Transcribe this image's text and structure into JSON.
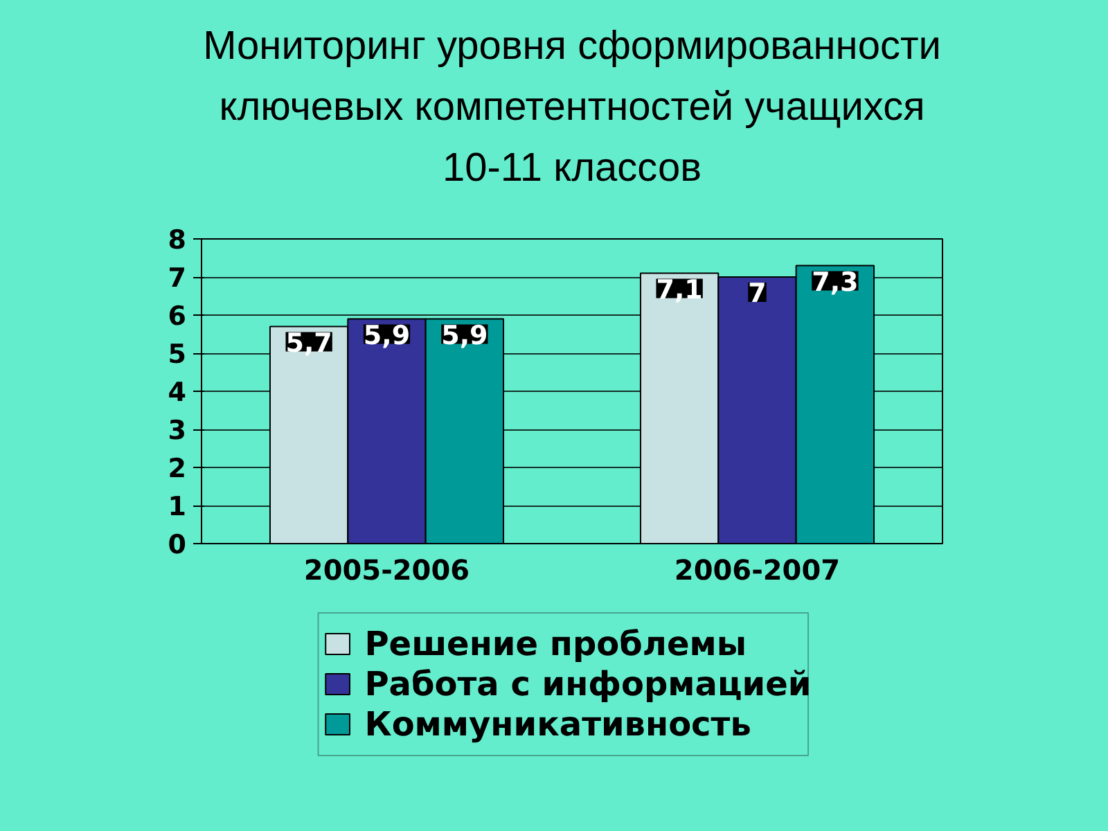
{
  "chart_data": {
    "type": "bar",
    "title": "Мониторинг уровня сформированности ключевых компетентностей учащихся 10-11 классов",
    "categories": [
      "2005-2006",
      "2006-2007"
    ],
    "series": [
      {
        "name": "Решение проблемы",
        "color": "#c8e2e4",
        "values": [
          5.7,
          7.1
        ],
        "value_labels": [
          "5,7",
          "7,1"
        ]
      },
      {
        "name": "Работа с информацией",
        "color": "#333399",
        "values": [
          5.9,
          7
        ],
        "value_labels": [
          "5,9",
          "7"
        ]
      },
      {
        "name": "Коммуникативность",
        "color": "#009a98",
        "values": [
          5.9,
          7.3
        ],
        "value_labels": [
          "5,9",
          "7,3"
        ]
      }
    ],
    "ylim": [
      0,
      8
    ],
    "yticks": [
      0,
      1,
      2,
      3,
      4,
      5,
      6,
      7,
      8
    ],
    "grid": "y",
    "legend": "bottom"
  }
}
